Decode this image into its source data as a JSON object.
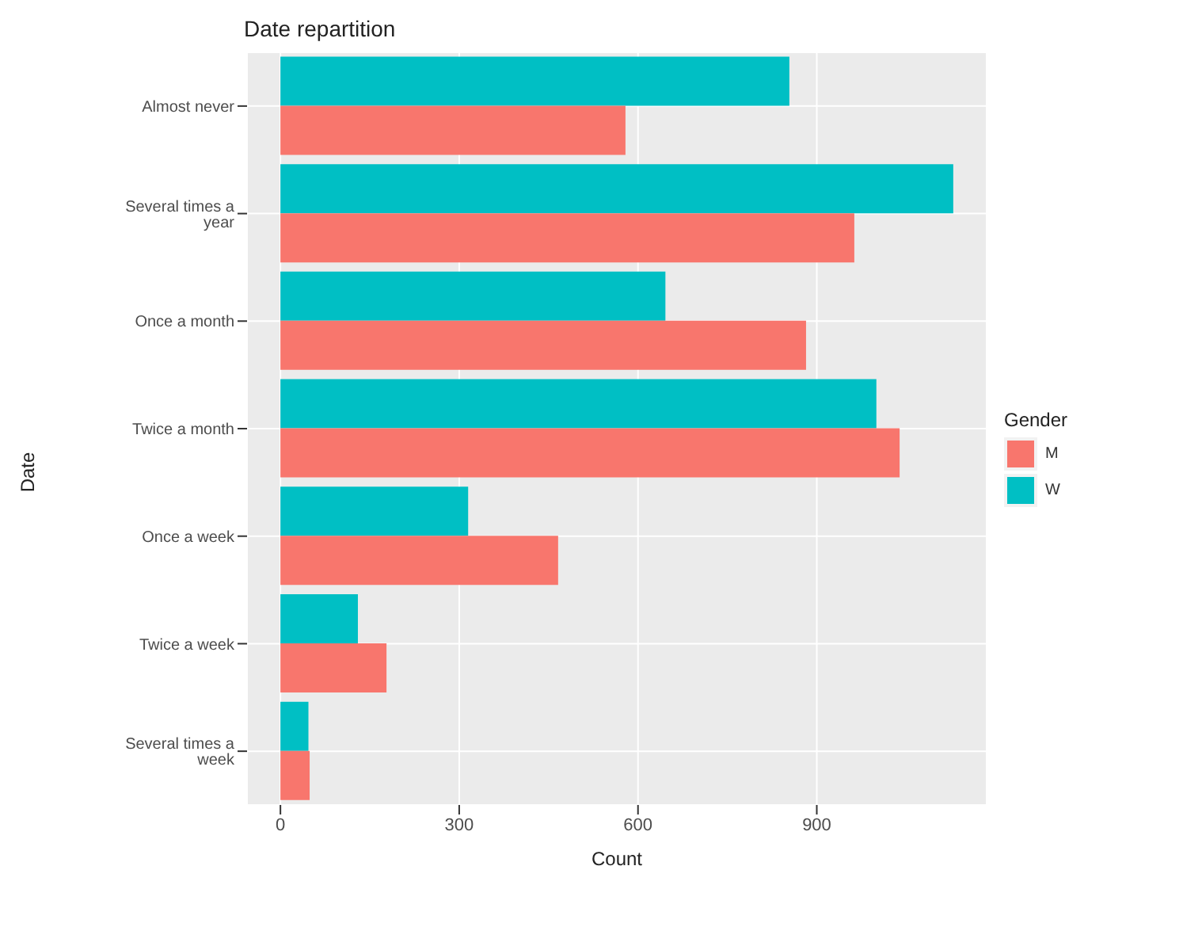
{
  "chart_data": {
    "type": "bar",
    "orientation": "horizontal",
    "title": "Date repartition",
    "xlabel": "Count",
    "ylabel": "Date",
    "legend_title": "Gender",
    "legend": "right",
    "grid": true,
    "categories": [
      "Almost never",
      "Several times a year",
      "Once a month",
      "Twice a month",
      "Once a week",
      "Twice a week",
      "Several times a week"
    ],
    "series": [
      {
        "name": "M",
        "color": "#f8766d",
        "values": [
          579,
          963,
          882,
          1039,
          466,
          178,
          49
        ]
      },
      {
        "name": "W",
        "color": "#00bfc4",
        "values": [
          854,
          1129,
          646,
          1000,
          315,
          130,
          47
        ]
      }
    ],
    "xlim": [
      -56,
      1185
    ],
    "xticks": [
      0,
      300,
      600,
      900
    ]
  }
}
